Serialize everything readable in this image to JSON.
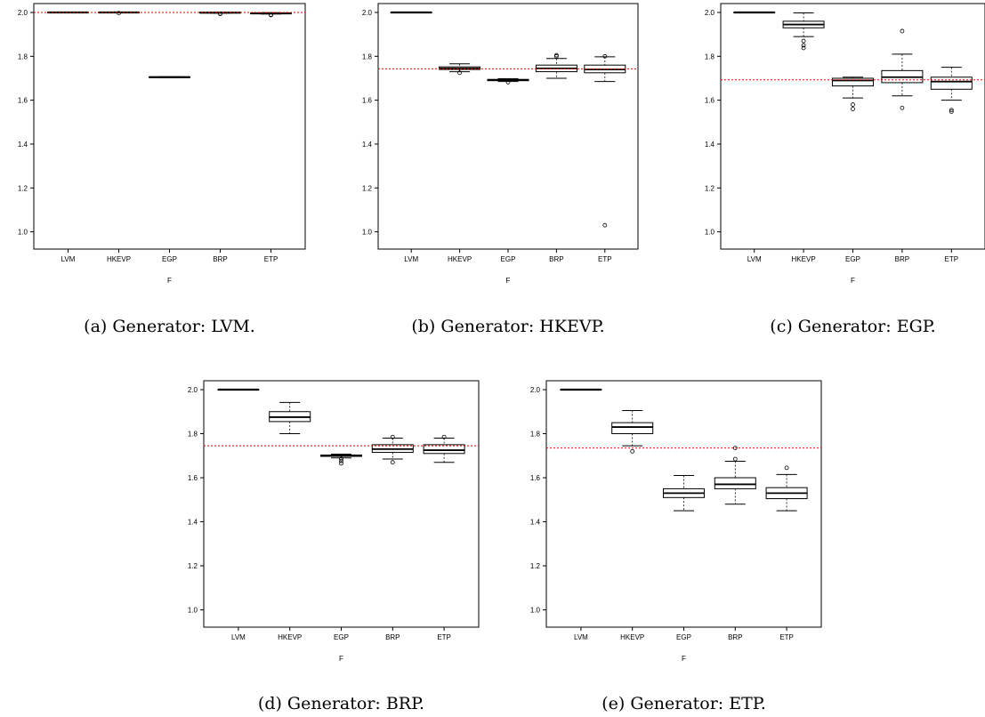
{
  "chart_data": [
    {
      "type": "box",
      "caption": "(a) Generator: LVM.",
      "xlabel": "F",
      "categories": [
        "LVM",
        "HKEVP",
        "EGP",
        "BRP",
        "ETP"
      ],
      "ylim": [
        0.97,
        2.0
      ],
      "yticks": [
        "1.0",
        "1.2",
        "1.4",
        "1.6",
        "1.8",
        "2.0"
      ],
      "reference_line": 2.0,
      "reference_color": "#ff0000",
      "boxes": [
        {
          "category": "LVM",
          "min": 2.0,
          "q1": 2.0,
          "median": 2.0,
          "q3": 2.0,
          "max": 2.0,
          "outliers": []
        },
        {
          "category": "HKEVP",
          "min": 1.998,
          "q1": 1.999,
          "median": 2.0,
          "q3": 2.0,
          "max": 2.0,
          "outliers": [
            1.997
          ]
        },
        {
          "category": "EGP",
          "min": 1.703,
          "q1": 1.704,
          "median": 1.705,
          "q3": 1.706,
          "max": 1.707,
          "outliers": []
        },
        {
          "category": "BRP",
          "min": 1.997,
          "q1": 1.998,
          "median": 1.999,
          "q3": 2.0,
          "max": 2.0,
          "outliers": [
            1.995,
            1.993
          ]
        },
        {
          "category": "ETP",
          "min": 1.993,
          "q1": 1.995,
          "median": 1.996,
          "q3": 1.997,
          "max": 1.999,
          "outliers": [
            1.99,
            1.988
          ]
        }
      ]
    },
    {
      "type": "box",
      "caption": "(b) Generator: HKEVP.",
      "xlabel": "F",
      "categories": [
        "LVM",
        "HKEVP",
        "EGP",
        "BRP",
        "ETP"
      ],
      "ylim": [
        0.97,
        2.0
      ],
      "yticks": [
        "1.0",
        "1.2",
        "1.4",
        "1.6",
        "1.8",
        "2.0"
      ],
      "reference_line": 1.743,
      "reference_color": "#ff0000",
      "boxes": [
        {
          "category": "LVM",
          "min": 2.0,
          "q1": 2.0,
          "median": 2.0,
          "q3": 2.0,
          "max": 2.0,
          "outliers": []
        },
        {
          "category": "HKEVP",
          "min": 1.73,
          "q1": 1.74,
          "median": 1.745,
          "q3": 1.752,
          "max": 1.766,
          "outliers": [
            1.725
          ]
        },
        {
          "category": "EGP",
          "min": 1.685,
          "q1": 1.689,
          "median": 1.692,
          "q3": 1.695,
          "max": 1.698,
          "outliers": [
            1.682
          ]
        },
        {
          "category": "BRP",
          "min": 1.7,
          "q1": 1.73,
          "median": 1.745,
          "q3": 1.76,
          "max": 1.79,
          "outliers": [
            1.8,
            1.805
          ]
        },
        {
          "category": "ETP",
          "min": 1.685,
          "q1": 1.725,
          "median": 1.74,
          "q3": 1.76,
          "max": 1.798,
          "outliers": [
            1.8,
            1.03
          ]
        }
      ]
    },
    {
      "type": "box",
      "caption": "(c) Generator: EGP.",
      "xlabel": "F",
      "categories": [
        "LVM",
        "HKEVP",
        "EGP",
        "BRP",
        "ETP"
      ],
      "ylim": [
        0.97,
        2.0
      ],
      "yticks": [
        "1.0",
        "1.2",
        "1.4",
        "1.6",
        "1.8",
        "2.0"
      ],
      "reference_line": 1.693,
      "reference_color": "#ff0000",
      "boxes": [
        {
          "category": "LVM",
          "min": 2.0,
          "q1": 2.0,
          "median": 2.0,
          "q3": 2.0,
          "max": 2.0,
          "outliers": []
        },
        {
          "category": "HKEVP",
          "min": 1.89,
          "q1": 1.93,
          "median": 1.945,
          "q3": 1.96,
          "max": 1.998,
          "outliers": [
            1.87,
            1.85,
            1.838
          ]
        },
        {
          "category": "EGP",
          "min": 1.61,
          "q1": 1.665,
          "median": 1.69,
          "q3": 1.7,
          "max": 1.705,
          "outliers": [
            1.58,
            1.56
          ]
        },
        {
          "category": "BRP",
          "min": 1.62,
          "q1": 1.68,
          "median": 1.705,
          "q3": 1.735,
          "max": 1.81,
          "outliers": [
            1.915,
            1.565
          ]
        },
        {
          "category": "ETP",
          "min": 1.6,
          "q1": 1.65,
          "median": 1.685,
          "q3": 1.705,
          "max": 1.75,
          "outliers": [
            1.555,
            1.548
          ]
        }
      ]
    },
    {
      "type": "box",
      "caption": "(d) Generator: BRP.",
      "xlabel": "F",
      "categories": [
        "LVM",
        "HKEVP",
        "EGP",
        "BRP",
        "ETP"
      ],
      "ylim": [
        0.97,
        2.0
      ],
      "yticks": [
        "1.0",
        "1.2",
        "1.4",
        "1.6",
        "1.8",
        "2.0"
      ],
      "reference_line": 1.745,
      "reference_color": "#ff0000",
      "boxes": [
        {
          "category": "LVM",
          "min": 2.0,
          "q1": 2.0,
          "median": 2.0,
          "q3": 2.0,
          "max": 2.0,
          "outliers": []
        },
        {
          "category": "HKEVP",
          "min": 1.8,
          "q1": 1.855,
          "median": 1.875,
          "q3": 1.9,
          "max": 1.942,
          "outliers": []
        },
        {
          "category": "EGP",
          "min": 1.69,
          "q1": 1.697,
          "median": 1.7,
          "q3": 1.703,
          "max": 1.707,
          "outliers": [
            1.685,
            1.676,
            1.665
          ]
        },
        {
          "category": "BRP",
          "min": 1.685,
          "q1": 1.715,
          "median": 1.73,
          "q3": 1.75,
          "max": 1.78,
          "outliers": [
            1.785,
            1.67
          ]
        },
        {
          "category": "ETP",
          "min": 1.67,
          "q1": 1.71,
          "median": 1.725,
          "q3": 1.75,
          "max": 1.78,
          "outliers": [
            1.785
          ]
        }
      ]
    },
    {
      "type": "box",
      "caption": "(e) Generator: ETP.",
      "xlabel": "F",
      "categories": [
        "LVM",
        "HKEVP",
        "EGP",
        "BRP",
        "ETP"
      ],
      "ylim": [
        0.97,
        2.0
      ],
      "yticks": [
        "1.0",
        "1.2",
        "1.4",
        "1.6",
        "1.8",
        "2.0"
      ],
      "reference_line": 1.735,
      "reference_color": "#ff0000",
      "boxes": [
        {
          "category": "LVM",
          "min": 2.0,
          "q1": 2.0,
          "median": 2.0,
          "q3": 2.0,
          "max": 2.0,
          "outliers": []
        },
        {
          "category": "HKEVP",
          "min": 1.745,
          "q1": 1.8,
          "median": 1.83,
          "q3": 1.85,
          "max": 1.905,
          "outliers": [
            1.72
          ]
        },
        {
          "category": "EGP",
          "min": 1.45,
          "q1": 1.51,
          "median": 1.53,
          "q3": 1.55,
          "max": 1.61,
          "outliers": []
        },
        {
          "category": "BRP",
          "min": 1.48,
          "q1": 1.55,
          "median": 1.57,
          "q3": 1.6,
          "max": 1.675,
          "outliers": [
            1.735,
            1.685
          ]
        },
        {
          "category": "ETP",
          "min": 1.45,
          "q1": 1.505,
          "median": 1.53,
          "q3": 1.555,
          "max": 1.615,
          "outliers": [
            1.645
          ]
        }
      ]
    }
  ]
}
